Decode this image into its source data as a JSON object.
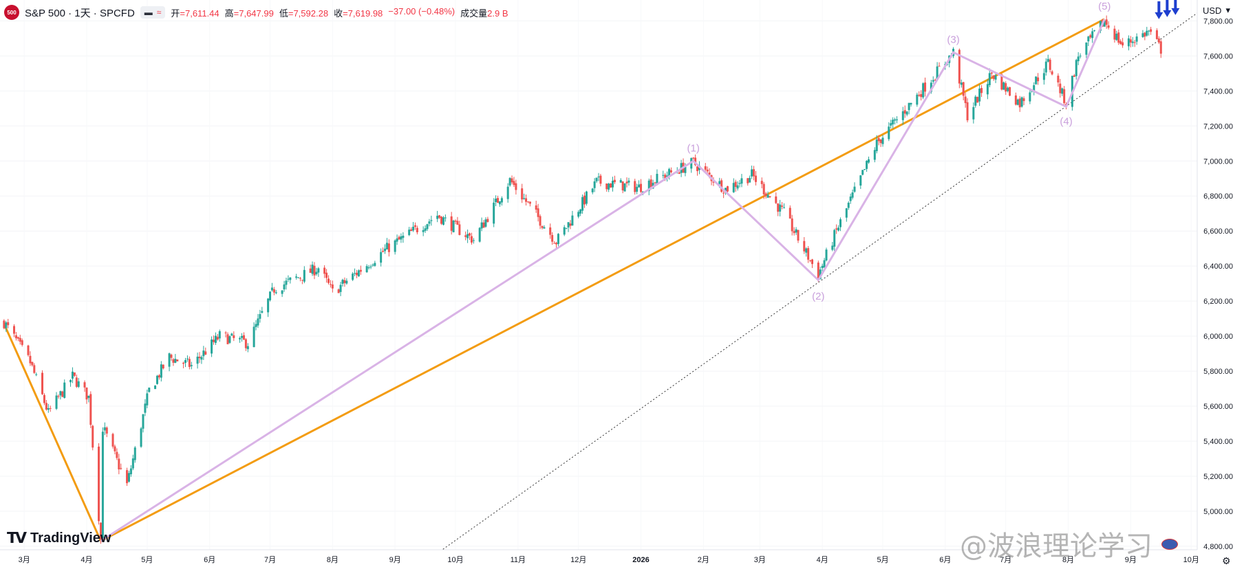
{
  "header": {
    "badge": "500",
    "symbol": "S&P 500 · 1天 · SPCFD",
    "pill_left": "▬",
    "pill_right": "≈",
    "open_label": "开",
    "open_value": "=7,611.44",
    "high_label": "高",
    "high_value": "=7,647.99",
    "low_label": "低",
    "low_value": "=7,592.28",
    "close_label": "收",
    "close_value": "=7,619.98",
    "change": "−37.00 (−0.48%)",
    "volume_label": "成交量",
    "volume_value": "2.9 B"
  },
  "currency": "USD",
  "logo_text": "TradingView",
  "watermark": "@波浪理论学习",
  "colors": {
    "up": "#26a69a",
    "down": "#ef5350",
    "trend": "#f39c12",
    "wave": "#d9b3e6",
    "arrow": "#1e3fcf"
  },
  "chart_data": {
    "type": "candlestick",
    "title": "S&P 500 · 1天 · SPCFD",
    "x_ticks": [
      "3月",
      "4月",
      "5月",
      "6月",
      "7月",
      "8月",
      "9月",
      "10月",
      "11月",
      "12月",
      "2026",
      "2月",
      "3月",
      "4月",
      "5月",
      "6月",
      "7月",
      "8月",
      "9月",
      "10月"
    ],
    "y_ticks": [
      "7,800.00",
      "7,600.00",
      "7,400.00",
      "7,200.00",
      "7,000.00",
      "6,800.00",
      "6,600.00",
      "6,400.00",
      "6,200.00",
      "6,000.00",
      "5,800.00",
      "5,600.00",
      "5,400.00",
      "5,200.00",
      "5,000.00",
      "4,800.00"
    ],
    "ylim": [
      4780,
      7880
    ],
    "approx_close_path": [
      [
        "2025-02-19",
        6080
      ],
      [
        "2025-03-04",
        5850
      ],
      [
        "2025-03-13",
        5560
      ],
      [
        "2025-03-25",
        5770
      ],
      [
        "2025-04-02",
        5650
      ],
      [
        "2025-04-08",
        4840
      ],
      [
        "2025-04-09",
        5480
      ],
      [
        "2025-04-21",
        5150
      ],
      [
        "2025-05-02",
        5690
      ],
      [
        "2025-05-12",
        5880
      ],
      [
        "2025-05-23",
        5830
      ],
      [
        "2025-06-06",
        6000
      ],
      [
        "2025-06-20",
        5960
      ],
      [
        "2025-07-03",
        6270
      ],
      [
        "2025-07-25",
        6390
      ],
      [
        "2025-08-01",
        6250
      ],
      [
        "2025-08-28",
        6500
      ],
      [
        "2025-09-22",
        6690
      ],
      [
        "2025-10-10",
        6550
      ],
      [
        "2025-10-28",
        6890
      ],
      [
        "2025-11-20",
        6540
      ],
      [
        "2025-12-10",
        6880
      ],
      [
        "2025-12-31",
        6850
      ],
      [
        "2026-01-27",
        6990
      ],
      [
        "2026-02-12",
        6840
      ],
      [
        "2026-02-25",
        6920
      ],
      [
        "2026-03-13",
        6700
      ],
      [
        "2026-03-30",
        6350
      ],
      [
        "2026-04-08",
        6600
      ],
      [
        "2026-04-28",
        7100
      ],
      [
        "2026-05-20",
        7400
      ],
      [
        "2026-06-05",
        7620
      ],
      [
        "2026-06-12",
        7260
      ],
      [
        "2026-06-24",
        7500
      ],
      [
        "2026-07-08",
        7330
      ],
      [
        "2026-07-22",
        7560
      ],
      [
        "2026-07-31",
        7330
      ],
      [
        "2026-08-06",
        7600
      ],
      [
        "2026-08-19",
        7800
      ],
      [
        "2026-08-28",
        7660
      ],
      [
        "2026-09-10",
        7740
      ],
      [
        "2026-09-17",
        7620
      ]
    ],
    "trendline_orange": [
      [
        "2025-02-19",
        6070
      ],
      [
        "2025-04-08",
        4830
      ],
      [
        "2026-08-19",
        7810
      ],
      [
        "2026-06-05",
        7420
      ]
    ],
    "trendline_dotted": [
      [
        "2025-09-22",
        4760
      ],
      [
        "2026-10-01",
        7820
      ]
    ],
    "wave_labels": [
      {
        "label": "(1)",
        "date": "2026-01-27",
        "value": 7000
      },
      {
        "label": "(2)",
        "date": "2026-03-30",
        "value": 6310
      },
      {
        "label": "(3)",
        "date": "2026-06-05",
        "value": 7620
      },
      {
        "label": "(4)",
        "date": "2026-07-31",
        "value": 7310
      },
      {
        "label": "(5)",
        "date": "2026-08-19",
        "value": 7810
      }
    ],
    "wave_path": [
      [
        "2025-04-08",
        4830
      ],
      [
        "2026-01-27",
        7000
      ],
      [
        "2026-03-30",
        6320
      ],
      [
        "2026-06-05",
        7620
      ],
      [
        "2026-07-31",
        7310
      ],
      [
        "2026-08-19",
        7810
      ]
    ],
    "annotations": [
      {
        "type": "down-arrows",
        "count": 3,
        "date": "2026-09-15",
        "value": 7790
      }
    ]
  }
}
